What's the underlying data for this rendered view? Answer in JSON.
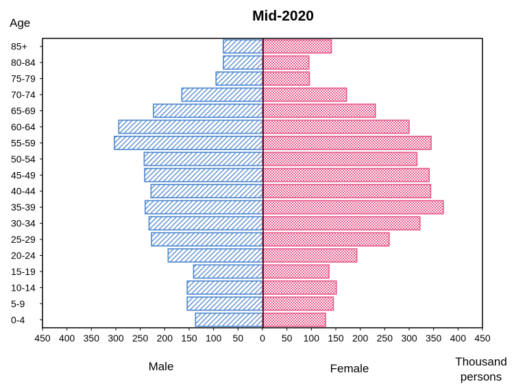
{
  "chart_data": {
    "type": "bar",
    "orientation": "horizontal",
    "layout": "population-pyramid",
    "title": "Mid-2020",
    "y_axis_title": "Age",
    "categories": [
      "0-4",
      "5-9",
      "10-14",
      "15-19",
      "20-24",
      "25-29",
      "30-34",
      "35-39",
      "40-44",
      "45-49",
      "50-54",
      "55-59",
      "60-64",
      "65-69",
      "70-74",
      "75-79",
      "80-84",
      "85+"
    ],
    "series": [
      {
        "name": "Male",
        "side": "left",
        "color": "#4a86cf",
        "pattern": "diagonal-hatch",
        "values": [
          137,
          154,
          154,
          141,
          193,
          227,
          232,
          240,
          228,
          241,
          242,
          303,
          294,
          223,
          165,
          95,
          80,
          80
        ]
      },
      {
        "name": "Female",
        "side": "right",
        "color": "#e8578a",
        "pattern": "checkered",
        "values": [
          129,
          145,
          151,
          136,
          193,
          259,
          322,
          370,
          344,
          341,
          316,
          345,
          300,
          231,
          172,
          96,
          95,
          141
        ]
      }
    ],
    "x_ticks": [
      "450",
      "400",
      "350",
      "300",
      "250",
      "200",
      "150",
      "100",
      "50",
      "0",
      "50",
      "100",
      "150",
      "200",
      "250",
      "300",
      "350",
      "400",
      "450"
    ],
    "xlim": [
      -450,
      450
    ],
    "x_unit_label": [
      "Thousand",
      "persons"
    ],
    "grid": false
  }
}
